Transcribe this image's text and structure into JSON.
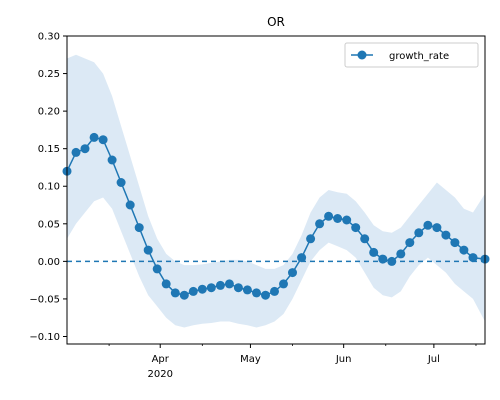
{
  "chart_data": {
    "type": "line",
    "title": "OR",
    "xlabel": "",
    "ylabel": "",
    "x_range": [
      "2020-03-01",
      "2020-07-18"
    ],
    "ylim": [
      -0.11,
      0.3
    ],
    "grid": false,
    "legend_placement": "top-right",
    "y_ticks": [
      -0.1,
      -0.05,
      0.0,
      0.05,
      0.1,
      0.15,
      0.2,
      0.25,
      0.3
    ],
    "y_tick_labels": [
      "−0.10",
      "−0.05",
      "0.00",
      "0.05",
      "0.10",
      "0.15",
      "0.20",
      "0.25",
      "0.30"
    ],
    "x_ticks": [
      {
        "date": "2020-04-01",
        "label": "Apr",
        "sublabel": "2020"
      },
      {
        "date": "2020-05-01",
        "label": "May",
        "sublabel": ""
      },
      {
        "date": "2020-06-01",
        "label": "Jun",
        "sublabel": ""
      },
      {
        "date": "2020-07-01",
        "label": "Jul",
        "sublabel": ""
      }
    ],
    "reference_line": {
      "y": 0,
      "style": "dashed",
      "color": "#1f77b4"
    },
    "series": [
      {
        "name": "growth_rate",
        "color": "#1f77b4",
        "marker": "circle",
        "x": [
          "2020-03-01",
          "2020-03-04",
          "2020-03-07",
          "2020-03-10",
          "2020-03-13",
          "2020-03-16",
          "2020-03-19",
          "2020-03-22",
          "2020-03-25",
          "2020-03-28",
          "2020-03-31",
          "2020-04-03",
          "2020-04-06",
          "2020-04-09",
          "2020-04-12",
          "2020-04-15",
          "2020-04-18",
          "2020-04-21",
          "2020-04-24",
          "2020-04-27",
          "2020-04-30",
          "2020-05-03",
          "2020-05-06",
          "2020-05-09",
          "2020-05-12",
          "2020-05-15",
          "2020-05-18",
          "2020-05-21",
          "2020-05-24",
          "2020-05-27",
          "2020-05-30",
          "2020-06-02",
          "2020-06-05",
          "2020-06-08",
          "2020-06-11",
          "2020-06-14",
          "2020-06-17",
          "2020-06-20",
          "2020-06-23",
          "2020-06-26",
          "2020-06-29",
          "2020-07-02",
          "2020-07-05",
          "2020-07-08",
          "2020-07-11",
          "2020-07-14",
          "2020-07-18"
        ],
        "y": [
          0.12,
          0.145,
          0.15,
          0.165,
          0.162,
          0.135,
          0.105,
          0.075,
          0.045,
          0.015,
          -0.01,
          -0.03,
          -0.042,
          -0.045,
          -0.04,
          -0.037,
          -0.035,
          -0.032,
          -0.03,
          -0.035,
          -0.038,
          -0.042,
          -0.045,
          -0.04,
          -0.03,
          -0.015,
          0.005,
          0.03,
          0.05,
          0.06,
          0.057,
          0.055,
          0.045,
          0.03,
          0.012,
          0.003,
          0.0,
          0.01,
          0.025,
          0.038,
          0.048,
          0.045,
          0.035,
          0.025,
          0.015,
          0.005,
          0.003
        ]
      }
    ],
    "confidence_band": {
      "color": "#dce9f5",
      "upper": [
        0.27,
        0.275,
        0.27,
        0.265,
        0.25,
        0.22,
        0.18,
        0.14,
        0.1,
        0.06,
        0.03,
        0.01,
        0.0,
        -0.005,
        -0.005,
        -0.004,
        -0.002,
        0.0,
        0.002,
        0.002,
        0.0,
        -0.005,
        -0.01,
        -0.01,
        -0.005,
        0.01,
        0.035,
        0.065,
        0.085,
        0.095,
        0.092,
        0.09,
        0.08,
        0.065,
        0.048,
        0.04,
        0.038,
        0.045,
        0.06,
        0.075,
        0.09,
        0.105,
        0.095,
        0.085,
        0.07,
        0.065,
        0.09
      ],
      "lower": [
        0.03,
        0.05,
        0.065,
        0.08,
        0.085,
        0.07,
        0.04,
        0.01,
        -0.02,
        -0.045,
        -0.06,
        -0.075,
        -0.085,
        -0.088,
        -0.085,
        -0.083,
        -0.082,
        -0.08,
        -0.08,
        -0.083,
        -0.085,
        -0.088,
        -0.085,
        -0.08,
        -0.07,
        -0.05,
        -0.025,
        0.0,
        0.015,
        0.025,
        0.02,
        0.015,
        0.005,
        -0.015,
        -0.035,
        -0.045,
        -0.048,
        -0.04,
        -0.02,
        -0.005,
        0.005,
        -0.005,
        -0.015,
        -0.03,
        -0.04,
        -0.05,
        -0.08
      ]
    }
  }
}
